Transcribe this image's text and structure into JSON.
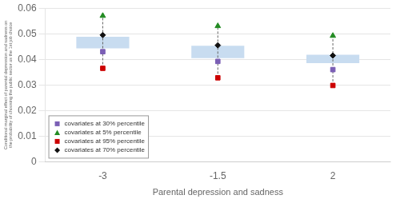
{
  "chart_data": {
    "type": "dot",
    "xlabel": "Parental depression and sadness",
    "ylabel": "Conditional marginal effect of parental depression and sadness on\nthe probability of choosing the public sector as the 1st job choice",
    "categories": [
      "-3",
      "-1.5",
      "2"
    ],
    "series": [
      {
        "name": "covariates at 30% percentile",
        "color": "#7B5FB5",
        "marker": "square",
        "values": [
          0.043,
          0.0392,
          0.036
        ]
      },
      {
        "name": "covariates at 5% percentile",
        "color": "#228B22",
        "marker": "triangle",
        "values": [
          0.057,
          0.053,
          0.0492
        ]
      },
      {
        "name": "covariates at 95% percentile",
        "color": "#CC0000",
        "marker": "square",
        "values": [
          0.0365,
          0.0328,
          0.0298
        ]
      },
      {
        "name": "covariates at 70% percentile",
        "color": "#111111",
        "marker": "diamond",
        "values": [
          0.0495,
          0.0455,
          0.0415
        ]
      }
    ],
    "boxes": {
      "color": "#C8DCF0",
      "low": [
        0.0443,
        0.0405,
        0.0385
      ],
      "high": [
        0.0488,
        0.0453,
        0.0418
      ]
    },
    "ylim": [
      0,
      0.06
    ],
    "yticks": [
      0,
      0.01,
      0.02,
      0.03,
      0.04,
      0.05,
      0.06
    ],
    "grid": "y",
    "legend": "lower left"
  }
}
